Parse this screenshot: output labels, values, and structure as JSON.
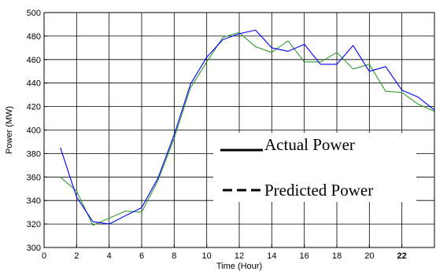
{
  "chart_data": {
    "type": "line",
    "xlabel": "Time (Hour)",
    "ylabel": "Power (MW)",
    "xlim": [
      0,
      24
    ],
    "ylim": [
      300,
      500
    ],
    "x_ticks": [
      0,
      2,
      4,
      6,
      8,
      10,
      12,
      14,
      16,
      18,
      20,
      22
    ],
    "x_tick_labels": [
      "0",
      "2",
      "4",
      "6",
      "8",
      "10",
      "12",
      "14",
      "16",
      "18",
      "20",
      "22"
    ],
    "y_ticks": [
      300,
      320,
      340,
      360,
      380,
      400,
      420,
      440,
      460,
      480,
      500
    ],
    "grid": true,
    "legend": {
      "placement": "center-right"
    },
    "x": [
      1,
      2,
      3,
      4,
      5,
      6,
      7,
      8,
      9,
      10,
      11,
      12,
      13,
      14,
      15,
      16,
      17,
      18,
      19,
      20,
      21,
      22,
      23,
      24
    ],
    "series": [
      {
        "name": "Actual Power",
        "color": "#0000ff",
        "values": [
          385,
          343,
          322,
          320,
          327,
          334,
          359,
          396,
          439,
          462,
          477,
          482,
          485,
          470,
          467,
          473,
          456,
          456,
          472,
          450,
          454,
          434,
          428,
          417
        ]
      },
      {
        "name": "Predicted Power",
        "color": "#2e9e2e",
        "values": [
          360,
          348,
          319,
          325,
          331,
          330,
          357,
          393,
          436,
          458,
          479,
          483,
          471,
          466,
          476,
          458,
          458,
          466,
          452,
          456,
          433,
          432,
          422,
          416
        ]
      }
    ]
  }
}
